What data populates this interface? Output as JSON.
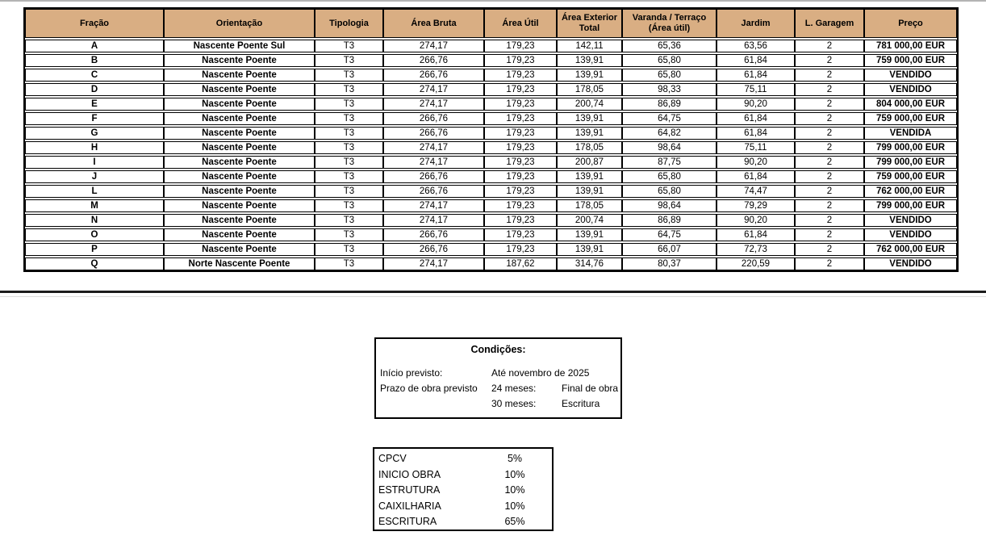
{
  "page": {
    "background": "#ffffff",
    "header_bg": "#d9ae83",
    "border_color": "#000000"
  },
  "table": {
    "headers": {
      "fracao": "Fração",
      "orientacao": "Orientação",
      "tipologia": "Tipologia",
      "area_bruta": "Área Bruta",
      "area_util": "Área Útil",
      "area_exterior": "Área Exterior Total",
      "varanda": "Varanda / Terraço (Área útil)",
      "jardim": "Jardim",
      "garagem": "L. Garagem",
      "preco": "Preço"
    },
    "rows": [
      {
        "fracao": "A",
        "orientacao": "Nascente Poente Sul",
        "tipologia": "T3",
        "area_bruta": "274,17",
        "area_util": "179,23",
        "area_exterior": "142,11",
        "varanda": "65,36",
        "jardim": "63,56",
        "garagem": "2",
        "preco": "781 000,00 EUR"
      },
      {
        "fracao": "B",
        "orientacao": "Nascente Poente",
        "tipologia": "T3",
        "area_bruta": "266,76",
        "area_util": "179,23",
        "area_exterior": "139,91",
        "varanda": "65,80",
        "jardim": "61,84",
        "garagem": "2",
        "preco": "759 000,00 EUR"
      },
      {
        "fracao": "C",
        "orientacao": "Nascente Poente",
        "tipologia": "T3",
        "area_bruta": "266,76",
        "area_util": "179,23",
        "area_exterior": "139,91",
        "varanda": "65,80",
        "jardim": "61,84",
        "garagem": "2",
        "preco": "VENDIDO"
      },
      {
        "fracao": "D",
        "orientacao": "Nascente Poente",
        "tipologia": "T3",
        "area_bruta": "274,17",
        "area_util": "179,23",
        "area_exterior": "178,05",
        "varanda": "98,33",
        "jardim": "75,11",
        "garagem": "2",
        "preco": "VENDIDO"
      },
      {
        "fracao": "E",
        "orientacao": "Nascente Poente",
        "tipologia": "T3",
        "area_bruta": "274,17",
        "area_util": "179,23",
        "area_exterior": "200,74",
        "varanda": "86,89",
        "jardim": "90,20",
        "garagem": "2",
        "preco": "804 000,00 EUR"
      },
      {
        "fracao": "F",
        "orientacao": "Nascente Poente",
        "tipologia": "T3",
        "area_bruta": "266,76",
        "area_util": "179,23",
        "area_exterior": "139,91",
        "varanda": "64,75",
        "jardim": "61,84",
        "garagem": "2",
        "preco": "759 000,00 EUR"
      },
      {
        "fracao": "G",
        "orientacao": "Nascente Poente",
        "tipologia": "T3",
        "area_bruta": "266,76",
        "area_util": "179,23",
        "area_exterior": "139,91",
        "varanda": "64,82",
        "jardim": "61,84",
        "garagem": "2",
        "preco": "VENDIDA"
      },
      {
        "fracao": "H",
        "orientacao": "Nascente Poente",
        "tipologia": "T3",
        "area_bruta": "274,17",
        "area_util": "179,23",
        "area_exterior": "178,05",
        "varanda": "98,64",
        "jardim": "75,11",
        "garagem": "2",
        "preco": "799 000,00 EUR"
      },
      {
        "fracao": "I",
        "orientacao": "Nascente Poente",
        "tipologia": "T3",
        "area_bruta": "274,17",
        "area_util": "179,23",
        "area_exterior": "200,87",
        "varanda": "87,75",
        "jardim": "90,20",
        "garagem": "2",
        "preco": "799 000,00 EUR"
      },
      {
        "fracao": "J",
        "orientacao": "Nascente Poente",
        "tipologia": "T3",
        "area_bruta": "266,76",
        "area_util": "179,23",
        "area_exterior": "139,91",
        "varanda": "65,80",
        "jardim": "61,84",
        "garagem": "2",
        "preco": "759 000,00 EUR"
      },
      {
        "fracao": "L",
        "orientacao": "Nascente Poente",
        "tipologia": "T3",
        "area_bruta": "266,76",
        "area_util": "179,23",
        "area_exterior": "139,91",
        "varanda": "65,80",
        "jardim": "74,47",
        "garagem": "2",
        "preco": "762 000,00 EUR"
      },
      {
        "fracao": "M",
        "orientacao": "Nascente Poente",
        "tipologia": "T3",
        "area_bruta": "274,17",
        "area_util": "179,23",
        "area_exterior": "178,05",
        "varanda": "98,64",
        "jardim": "79,29",
        "garagem": "2",
        "preco": "799 000,00 EUR"
      },
      {
        "fracao": "N",
        "orientacao": "Nascente Poente",
        "tipologia": "T3",
        "area_bruta": "274,17",
        "area_util": "179,23",
        "area_exterior": "200,74",
        "varanda": "86,89",
        "jardim": "90,20",
        "garagem": "2",
        "preco": "VENDIDO"
      },
      {
        "fracao": "O",
        "orientacao": "Nascente Poente",
        "tipologia": "T3",
        "area_bruta": "266,76",
        "area_util": "179,23",
        "area_exterior": "139,91",
        "varanda": "64,75",
        "jardim": "61,84",
        "garagem": "2",
        "preco": "VENDIDO"
      },
      {
        "fracao": "P",
        "orientacao": "Nascente Poente",
        "tipologia": "T3",
        "area_bruta": "266,76",
        "area_util": "179,23",
        "area_exterior": "139,91",
        "varanda": "66,07",
        "jardim": "72,73",
        "garagem": "2",
        "preco": "762 000,00 EUR"
      },
      {
        "fracao": "Q",
        "orientacao": "Norte Nascente Poente",
        "tipologia": "T3",
        "area_bruta": "274,17",
        "area_util": "187,62",
        "area_exterior": "314,76",
        "varanda": "80,37",
        "jardim": "220,59",
        "garagem": "2",
        "preco": "VENDIDO"
      }
    ]
  },
  "conditions": {
    "title": "Condições:",
    "rows": [
      {
        "c1": "Início previsto:",
        "c2": "Até novembro de 2025",
        "c3": ""
      },
      {
        "c1": "Prazo de obra previsto",
        "c2": "24 meses:",
        "c3": "Final de obra"
      },
      {
        "c1": "",
        "c2": "30 meses:",
        "c3": "Escritura"
      }
    ]
  },
  "payment": {
    "items": [
      {
        "label": "CPCV",
        "value": "5%"
      },
      {
        "label": "INICIO OBRA",
        "value": "10%"
      },
      {
        "label": "ESTRUTURA",
        "value": "10%"
      },
      {
        "label": "CAIXILHARIA",
        "value": "10%"
      },
      {
        "label": "ESCRITURA",
        "value": "65%"
      }
    ]
  }
}
